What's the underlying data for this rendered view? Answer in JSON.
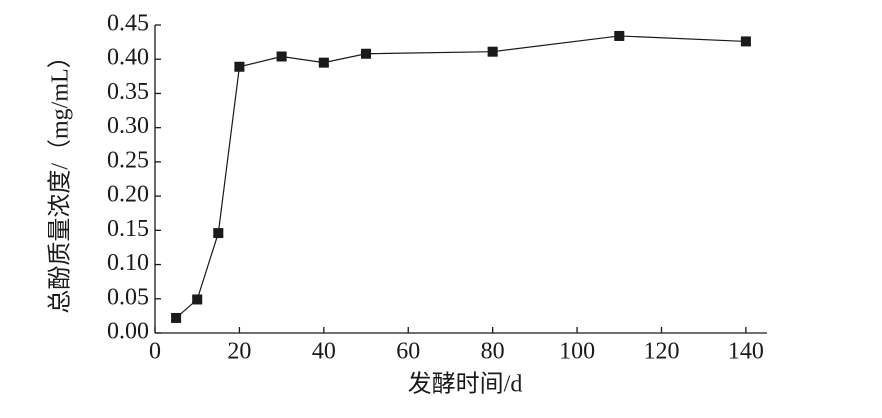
{
  "chart_data": {
    "type": "line",
    "x_label": "发酵时间/d",
    "y_label": "总酚质量浓度/（mg/mL）",
    "x": [
      5,
      10,
      15,
      20,
      30,
      40,
      50,
      80,
      110,
      140
    ],
    "series": [
      {
        "color": "#1a1a1a",
        "values": [
          0.022,
          0.049,
          0.146,
          0.389,
          0.404,
          0.395,
          0.408,
          0.411,
          0.434,
          0.426
        ],
        "errors": [
          0.004,
          0.004,
          0.004,
          0.005,
          0.004,
          0.004,
          0.004,
          0.005,
          0.004,
          0.004
        ]
      }
    ],
    "xlim": [
      0,
      145
    ],
    "xticks": [
      0,
      20,
      40,
      60,
      80,
      100,
      120,
      140
    ],
    "ylim": [
      0,
      0.45
    ],
    "yticks": [
      {
        "value": 0,
        "label": "0.00"
      },
      {
        "value": 0.05,
        "label": "0.05"
      },
      {
        "value": 0.1,
        "label": "0.10"
      },
      {
        "value": 0.15,
        "label": "0.15"
      },
      {
        "value": 0.2,
        "label": "0.20"
      },
      {
        "value": 0.25,
        "label": "0.25"
      },
      {
        "value": 0.3,
        "label": "0.30"
      },
      {
        "value": 0.35,
        "label": "0.35"
      },
      {
        "value": 0.4,
        "label": "0.40"
      },
      {
        "value": 0.45,
        "label": "0.45"
      }
    ]
  }
}
